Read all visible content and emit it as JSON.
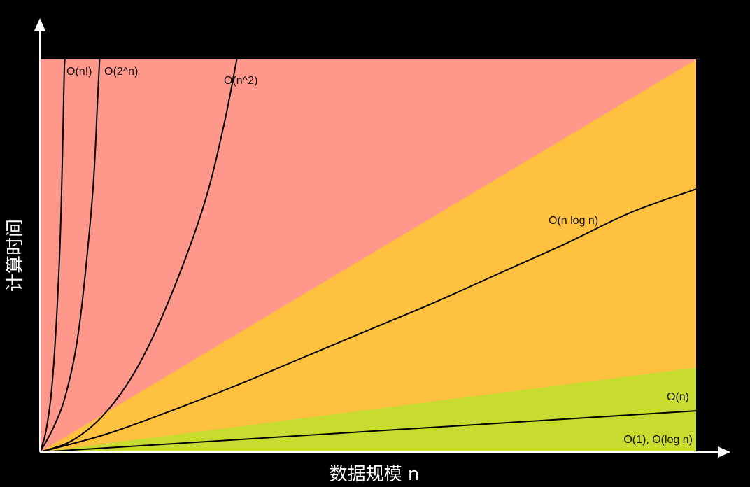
{
  "chart_data": {
    "type": "line",
    "title": "",
    "xlabel": "数据规模 n",
    "ylabel": "计算时间",
    "xlim": [
      0,
      10
    ],
    "ylim": [
      0,
      10
    ],
    "grid": false,
    "legend": "none",
    "regions": [
      {
        "name": "red-zone",
        "color": "#FF978A"
      },
      {
        "name": "orange-zone",
        "color": "#FFC13F"
      },
      {
        "name": "green-zone",
        "color": "#C7DC2E"
      }
    ],
    "series": [
      {
        "name": "O(n!)",
        "x": [
          0,
          0.1,
          0.2,
          0.3,
          0.35,
          0.37,
          0.38
        ],
        "y": [
          0,
          0.6,
          2,
          5,
          8,
          9.6,
          10
        ]
      },
      {
        "name": "O(2^n)",
        "x": [
          0,
          0.2,
          0.4,
          0.6,
          0.8,
          0.88,
          0.91
        ],
        "y": [
          0,
          0.6,
          1.5,
          3.2,
          6.5,
          9,
          10
        ]
      },
      {
        "name": "O(n^2)",
        "x": [
          0,
          0.5,
          1,
          1.5,
          2,
          2.5,
          2.8,
          3
        ],
        "y": [
          0,
          0.3,
          1,
          2.2,
          4,
          6.3,
          8.3,
          10
        ]
      },
      {
        "name": "O(n log n)",
        "x": [
          0,
          1,
          2,
          3,
          4,
          5,
          6,
          7,
          8,
          9,
          10
        ],
        "y": [
          0,
          0.45,
          1.05,
          1.7,
          2.4,
          3.1,
          3.8,
          4.55,
          5.3,
          6.1,
          6.7
        ]
      },
      {
        "name": "O(n)",
        "x": [
          0,
          10
        ],
        "y": [
          0,
          1.05
        ]
      },
      {
        "name": "O(1), O(log n)",
        "x": [
          0,
          10
        ],
        "y": [
          0,
          0
        ]
      }
    ]
  }
}
